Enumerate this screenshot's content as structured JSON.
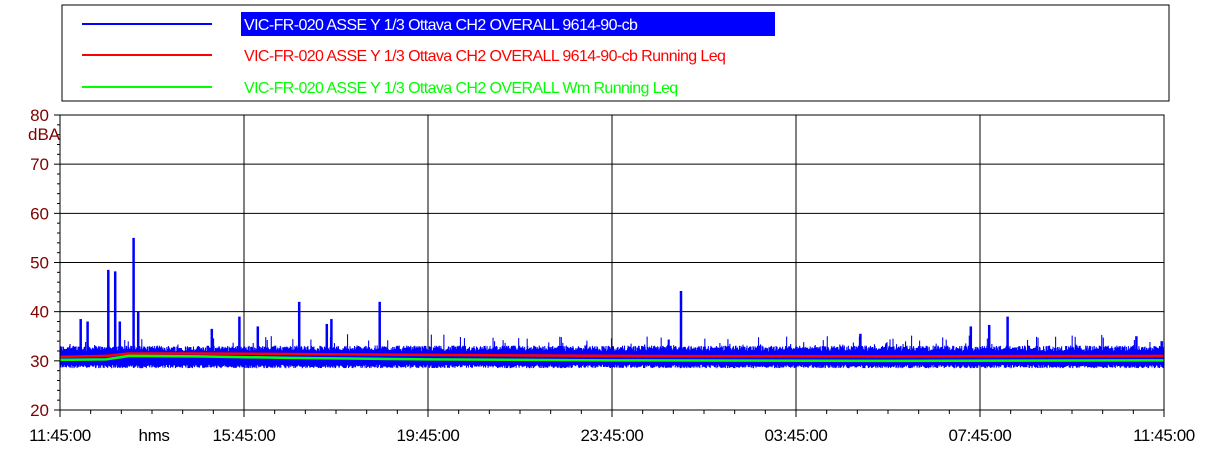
{
  "chart_data": {
    "type": "line",
    "ylabel": "dBA",
    "xlabel": "hms",
    "ylim": [
      20,
      80
    ],
    "yticks": [
      20,
      30,
      40,
      50,
      60,
      70,
      80
    ],
    "xticks": [
      "11:45:00",
      "15:45:00",
      "19:45:00",
      "23:45:00",
      "03:45:00",
      "07:45:00",
      "11:45:00"
    ],
    "x_range_hours": [
      0,
      24
    ],
    "grid": true,
    "legend_position": "top",
    "series": [
      {
        "name": "VIC-FR-020 ASSE Y 1/3 Ottava CH2 OVERALL 9614-90-cb",
        "color": "#0000ff",
        "baseline": 30,
        "noise_low": 28.5,
        "noise_high": 32.5,
        "peaks": [
          {
            "x": 0.45,
            "y": 38.5
          },
          {
            "x": 0.6,
            "y": 38
          },
          {
            "x": 1.05,
            "y": 48.5
          },
          {
            "x": 1.2,
            "y": 48.2
          },
          {
            "x": 1.3,
            "y": 38
          },
          {
            "x": 1.6,
            "y": 55
          },
          {
            "x": 1.7,
            "y": 40
          },
          {
            "x": 3.3,
            "y": 36.5
          },
          {
            "x": 3.9,
            "y": 39
          },
          {
            "x": 4.3,
            "y": 37
          },
          {
            "x": 5.2,
            "y": 42
          },
          {
            "x": 5.8,
            "y": 37.5
          },
          {
            "x": 5.9,
            "y": 38.5
          },
          {
            "x": 6.95,
            "y": 42
          },
          {
            "x": 13.5,
            "y": 44.2
          },
          {
            "x": 17.4,
            "y": 35.5
          },
          {
            "x": 19.8,
            "y": 37
          },
          {
            "x": 20.2,
            "y": 37.3
          },
          {
            "x": 20.6,
            "y": 39
          },
          {
            "x": 23.4,
            "y": 35
          },
          {
            "x": 23.95,
            "y": 34
          }
        ]
      },
      {
        "name": "VIC-FR-020 ASSE Y 1/3 Ottava CH2 OVERALL 9614-90-cb Running Leq",
        "color": "#ff0000",
        "points": [
          [
            0,
            30.8
          ],
          [
            1,
            31
          ],
          [
            1.5,
            31.5
          ],
          [
            3,
            31.5
          ],
          [
            5,
            31.4
          ],
          [
            8,
            31.2
          ],
          [
            12,
            31
          ],
          [
            18,
            30.9
          ],
          [
            24,
            31
          ]
        ]
      },
      {
        "name": "VIC-FR-020 ASSE Y 1/3 Ottava CH2 OVERALL Wm Running Leq",
        "color": "#00ff00",
        "points": [
          [
            0,
            30.2
          ],
          [
            1,
            30.3
          ],
          [
            1.5,
            31
          ],
          [
            3,
            30.9
          ],
          [
            5,
            30.6
          ],
          [
            8,
            30.3
          ],
          [
            12,
            30.1
          ],
          [
            18,
            30
          ],
          [
            24,
            30.1
          ]
        ]
      }
    ]
  }
}
